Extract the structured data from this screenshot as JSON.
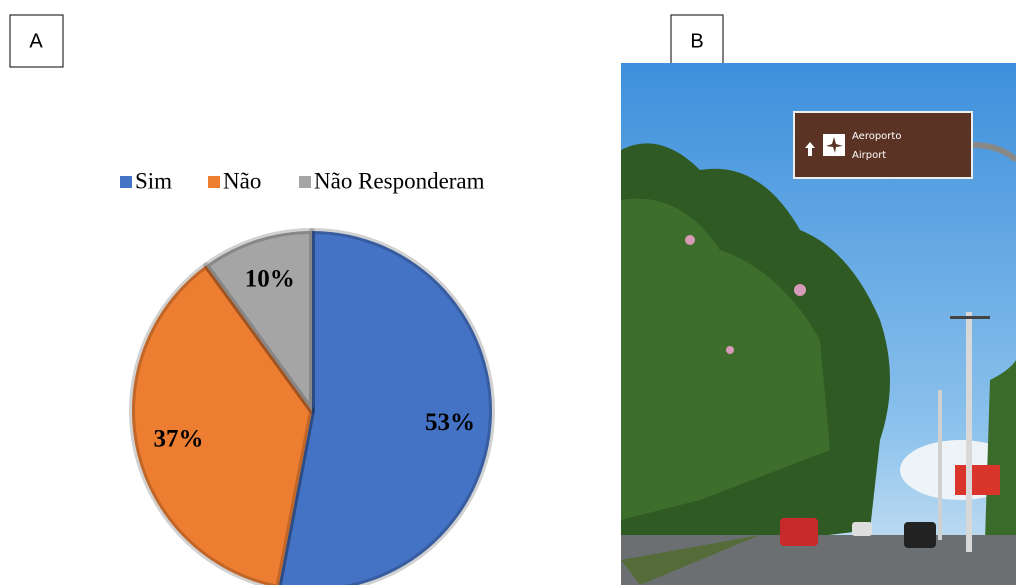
{
  "panels": [
    {
      "label": "A"
    },
    {
      "label": "B"
    }
  ],
  "chart_data": {
    "type": "pie",
    "categories": [
      "Sim",
      "Não",
      "Não Responderam"
    ],
    "values": [
      53,
      37,
      10
    ],
    "value_labels": [
      "53%",
      "37%",
      "10%"
    ],
    "colors": [
      "#4472c4",
      "#ed7d31",
      "#a5a5a5"
    ],
    "legend": "top"
  },
  "photo": {
    "sign": [
      "Aeroporto",
      "Airport"
    ]
  }
}
